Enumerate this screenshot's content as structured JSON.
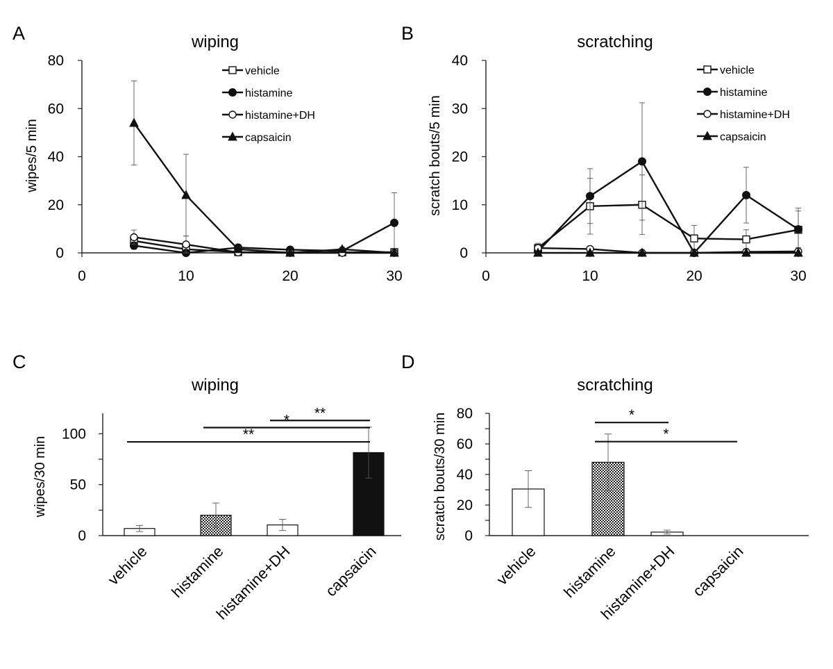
{
  "chart_data": [
    {
      "id": "A",
      "type": "line",
      "panel_label": "A",
      "title": "wiping",
      "ylabel": "wipes/5 min",
      "xlabel": "",
      "xlim": [
        0,
        30
      ],
      "ylim": [
        0,
        80
      ],
      "xticks": [
        "0",
        "10",
        "20",
        "30"
      ],
      "yticks": [
        "0",
        "20",
        "40",
        "60",
        "80"
      ],
      "series": [
        {
          "name": "vehicle",
          "marker": "square-open",
          "x": [
            5,
            10,
            15,
            20,
            25,
            30
          ],
          "y": [
            5.0,
            1.5,
            0.3,
            0.2,
            0.2,
            0.3
          ],
          "err": [
            2.0,
            2.0,
            0.5,
            0.5,
            0.5,
            0.5
          ]
        },
        {
          "name": "histamine",
          "marker": "circle-filled",
          "x": [
            5,
            10,
            15,
            20,
            25,
            30
          ],
          "y": [
            3.0,
            0.0,
            2.2,
            1.3,
            0.8,
            12.5
          ],
          "err": [
            1.5,
            0.5,
            1.2,
            0.8,
            0.5,
            12.5
          ]
        },
        {
          "name": "histamine+DH",
          "marker": "circle-open",
          "x": [
            5,
            10,
            15,
            20,
            25,
            30
          ],
          "y": [
            6.5,
            3.5,
            0.2,
            0.0,
            0.0,
            0.0
          ],
          "err": [
            3.0,
            3.5,
            0.5,
            0.3,
            0.3,
            0.3
          ]
        },
        {
          "name": "capsaicin",
          "marker": "triangle-filled",
          "x": [
            5,
            10,
            15,
            20,
            25,
            30
          ],
          "y": [
            54.0,
            24.0,
            1.5,
            0.0,
            1.5,
            0.0
          ],
          "err": [
            17.5,
            17.0,
            1.0,
            0.5,
            1.0,
            0.5
          ]
        }
      ]
    },
    {
      "id": "B",
      "type": "line",
      "panel_label": "B",
      "title": "scratching",
      "ylabel": "scratch bouts/5 min",
      "xlabel": "",
      "xlim": [
        0,
        30
      ],
      "ylim": [
        0,
        40
      ],
      "xticks": [
        "0",
        "10",
        "20",
        "30"
      ],
      "yticks": [
        "0",
        "10",
        "20",
        "30",
        "40"
      ],
      "series": [
        {
          "name": "vehicle",
          "marker": "square-open",
          "x": [
            5,
            10,
            15,
            20,
            25,
            30
          ],
          "y": [
            1.0,
            9.7,
            10.0,
            3.0,
            2.8,
            4.8
          ],
          "err": [
            0.8,
            5.8,
            6.2,
            2.7,
            2.0,
            4.5
          ]
        },
        {
          "name": "histamine",
          "marker": "circle-filled",
          "x": [
            5,
            10,
            15,
            20,
            25,
            30
          ],
          "y": [
            0.3,
            11.8,
            19.0,
            0.0,
            12.0,
            4.9
          ],
          "err": [
            0.5,
            5.7,
            12.2,
            0.3,
            5.8,
            3.8
          ]
        },
        {
          "name": "histamine+DH",
          "marker": "circle-open",
          "x": [
            5,
            10,
            15,
            20,
            25,
            30
          ],
          "y": [
            1.0,
            0.8,
            0.0,
            0.0,
            0.2,
            0.3
          ],
          "err": [
            1.0,
            0.5,
            0.2,
            0.2,
            0.3,
            0.3
          ]
        },
        {
          "name": "capsaicin",
          "marker": "triangle-filled",
          "x": [
            5,
            10,
            15,
            20,
            25,
            30
          ],
          "y": [
            0.0,
            0.0,
            0.0,
            0.0,
            0.0,
            0.0
          ],
          "err": [
            0.0,
            0.0,
            0.0,
            0.0,
            0.0,
            0.0
          ]
        }
      ]
    },
    {
      "id": "C",
      "type": "bar",
      "panel_label": "C",
      "title": "wiping",
      "ylabel": "wipes/30 min",
      "ylim": [
        0,
        120
      ],
      "yticks": [
        "0",
        "50",
        "100"
      ],
      "categories": [
        "vehicle",
        "histamine",
        "histamine+DH",
        "capsaicin"
      ],
      "fills": [
        "white",
        "dots",
        "white",
        "black"
      ],
      "values": [
        7,
        20,
        10.5,
        81.5
      ],
      "errors": [
        3,
        12,
        5.5,
        25
      ],
      "significance": [
        {
          "from": 2,
          "to": 3,
          "y": 113,
          "label": "**"
        },
        {
          "from": 1,
          "to": 3,
          "y": 106,
          "label": "*"
        },
        {
          "from": 0,
          "to": 3,
          "y": 92,
          "label": "**"
        }
      ]
    },
    {
      "id": "D",
      "type": "bar",
      "panel_label": "D",
      "title": "scratching",
      "ylabel": "scratch bouts/30 min",
      "ylim": [
        0,
        80
      ],
      "yticks": [
        "0",
        "20",
        "40",
        "60",
        "80"
      ],
      "categories": [
        "vehicle",
        "histamine",
        "histamine+DH",
        "capsaicin"
      ],
      "fills": [
        "white",
        "dots",
        "white",
        "black"
      ],
      "values": [
        30.5,
        48,
        2.3,
        0
      ],
      "errors": [
        12,
        18.5,
        1.3,
        0
      ],
      "significance": [
        {
          "from": 1,
          "to": 2,
          "y": 74,
          "label": "*"
        },
        {
          "from": 1,
          "to": 3,
          "y": 61.5,
          "label": "*"
        }
      ]
    }
  ]
}
